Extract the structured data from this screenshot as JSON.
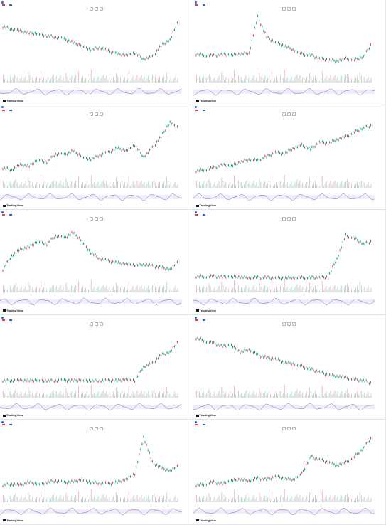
{
  "brand": "TradingView",
  "panels": [
    {
      "header": "",
      "ohlc": "",
      "badge": "",
      "badge2": "",
      "price": "",
      "price_color": "#089981",
      "dates": [
        "",
        "",
        "",
        "",
        "",
        ""
      ],
      "rsi_label": "",
      "last_date": ""
    },
    {
      "header": "",
      "ohlc": "",
      "badge": "",
      "badge2": "",
      "price": "",
      "price_color": "#f23645",
      "dates": [
        "",
        "",
        "",
        "",
        "",
        ""
      ],
      "rsi_label": "",
      "last_date": ""
    },
    {
      "header": "",
      "ohlc": "",
      "badge": "",
      "badge2": "",
      "price": "",
      "price_color": "#089981",
      "dates": [
        "",
        "",
        "",
        "",
        "",
        ""
      ],
      "rsi_label": "",
      "last_date": ""
    },
    {
      "header": "",
      "ohlc": "",
      "badge": "",
      "badge2": "",
      "price": "",
      "price_color": "#f23645",
      "dates": [
        "",
        "",
        "",
        "",
        "",
        ""
      ],
      "rsi_label": "",
      "last_date": ""
    },
    {
      "header": "",
      "ohlc": "",
      "badge": "",
      "badge2": "",
      "price": "",
      "price_color": "#089981",
      "dates": [
        "",
        "",
        "",
        "",
        "",
        ""
      ],
      "rsi_label": "",
      "last_date": ""
    },
    {
      "header": "",
      "ohlc": "",
      "badge": "",
      "badge2": "",
      "price": "",
      "price_color": "#089981",
      "dates": [
        "",
        "",
        "",
        "",
        "",
        ""
      ],
      "rsi_label": "",
      "last_date": ""
    },
    {
      "header": "",
      "ohlc": "",
      "badge": "",
      "badge2": "",
      "price": "",
      "price_color": "#089981",
      "dates": [
        "",
        "",
        "",
        "",
        "",
        ""
      ],
      "rsi_label": "",
      "last_date": ""
    },
    {
      "header": "",
      "ohlc": "",
      "badge": "",
      "badge2": "",
      "price": "",
      "price_color": "#f23645",
      "dates": [
        "",
        "",
        "",
        "",
        "",
        ""
      ],
      "rsi_label": "",
      "last_date": ""
    },
    {
      "header": "",
      "ohlc": "",
      "badge": "",
      "badge2": "",
      "price": "",
      "price_color": "#f23645",
      "dates": [
        "",
        "",
        "",
        "",
        "",
        ""
      ],
      "rsi_label": "",
      "last_date": ""
    },
    {
      "header": "",
      "ohlc": "",
      "badge": "",
      "badge2": "",
      "price": "",
      "price_color": "#089981",
      "dates": [
        "",
        "",
        "",
        "",
        "",
        ""
      ],
      "rsi_label": "",
      "last_date": ""
    }
  ],
  "chart_data": [
    {
      "type": "line",
      "title": "",
      "values": [
        0.78,
        0.74,
        0.7,
        0.67,
        0.66,
        0.62,
        0.6,
        0.56,
        0.5,
        0.45,
        0.38,
        0.42,
        0.35,
        0.3,
        0.28,
        0.32,
        0.22,
        0.25,
        0.45,
        0.55,
        0.9
      ]
    },
    {
      "type": "line",
      "title": "",
      "values": [
        0.3,
        0.28,
        0.27,
        0.29,
        0.28,
        0.3,
        0.32,
        0.95,
        0.6,
        0.5,
        0.45,
        0.38,
        0.3,
        0.28,
        0.22,
        0.2,
        0.18,
        0.22,
        0.2,
        0.25,
        0.5
      ]
    },
    {
      "type": "line",
      "title": "",
      "values": [
        0.15,
        0.12,
        0.2,
        0.18,
        0.3,
        0.25,
        0.4,
        0.38,
        0.45,
        0.35,
        0.3,
        0.38,
        0.42,
        0.5,
        0.45,
        0.55,
        0.35,
        0.5,
        0.7,
        0.95,
        0.85
      ]
    },
    {
      "type": "line",
      "title": "",
      "values": [
        0.1,
        0.12,
        0.15,
        0.2,
        0.18,
        0.25,
        0.3,
        0.28,
        0.35,
        0.42,
        0.4,
        0.5,
        0.55,
        0.48,
        0.6,
        0.58,
        0.65,
        0.7,
        0.78,
        0.85,
        0.9
      ]
    },
    {
      "type": "line",
      "title": "",
      "values": [
        0.2,
        0.45,
        0.55,
        0.6,
        0.7,
        0.65,
        0.8,
        0.75,
        0.85,
        0.7,
        0.5,
        0.4,
        0.35,
        0.32,
        0.3,
        0.28,
        0.3,
        0.26,
        0.24,
        0.2,
        0.35
      ]
    },
    {
      "type": "line",
      "title": "",
      "values": [
        0.08,
        0.08,
        0.08,
        0.07,
        0.07,
        0.07,
        0.06,
        0.06,
        0.06,
        0.05,
        0.05,
        0.06,
        0.06,
        0.06,
        0.06,
        0.07,
        0.4,
        0.8,
        0.75,
        0.65,
        0.7
      ]
    },
    {
      "type": "line",
      "title": "",
      "values": [
        0.1,
        0.1,
        0.1,
        0.1,
        0.11,
        0.1,
        0.1,
        0.1,
        0.1,
        0.11,
        0.1,
        0.1,
        0.1,
        0.1,
        0.12,
        0.1,
        0.35,
        0.4,
        0.55,
        0.6,
        0.8
      ]
    },
    {
      "type": "line",
      "title": "",
      "values": [
        0.85,
        0.8,
        0.75,
        0.7,
        0.72,
        0.6,
        0.65,
        0.55,
        0.5,
        0.48,
        0.42,
        0.4,
        0.35,
        0.3,
        0.25,
        0.2,
        0.18,
        0.15,
        0.12,
        0.1,
        0.05
      ]
    },
    {
      "type": "line",
      "title": "",
      "values": [
        0.1,
        0.12,
        0.1,
        0.15,
        0.12,
        0.15,
        0.18,
        0.14,
        0.16,
        0.2,
        0.15,
        0.14,
        0.12,
        0.15,
        0.2,
        0.3,
        0.95,
        0.5,
        0.4,
        0.35,
        0.45
      ]
    },
    {
      "type": "line",
      "title": "",
      "values": [
        0.1,
        0.12,
        0.15,
        0.12,
        0.18,
        0.2,
        0.18,
        0.22,
        0.2,
        0.25,
        0.22,
        0.2,
        0.3,
        0.6,
        0.55,
        0.5,
        0.45,
        0.5,
        0.6,
        0.75,
        0.95
      ]
    }
  ]
}
